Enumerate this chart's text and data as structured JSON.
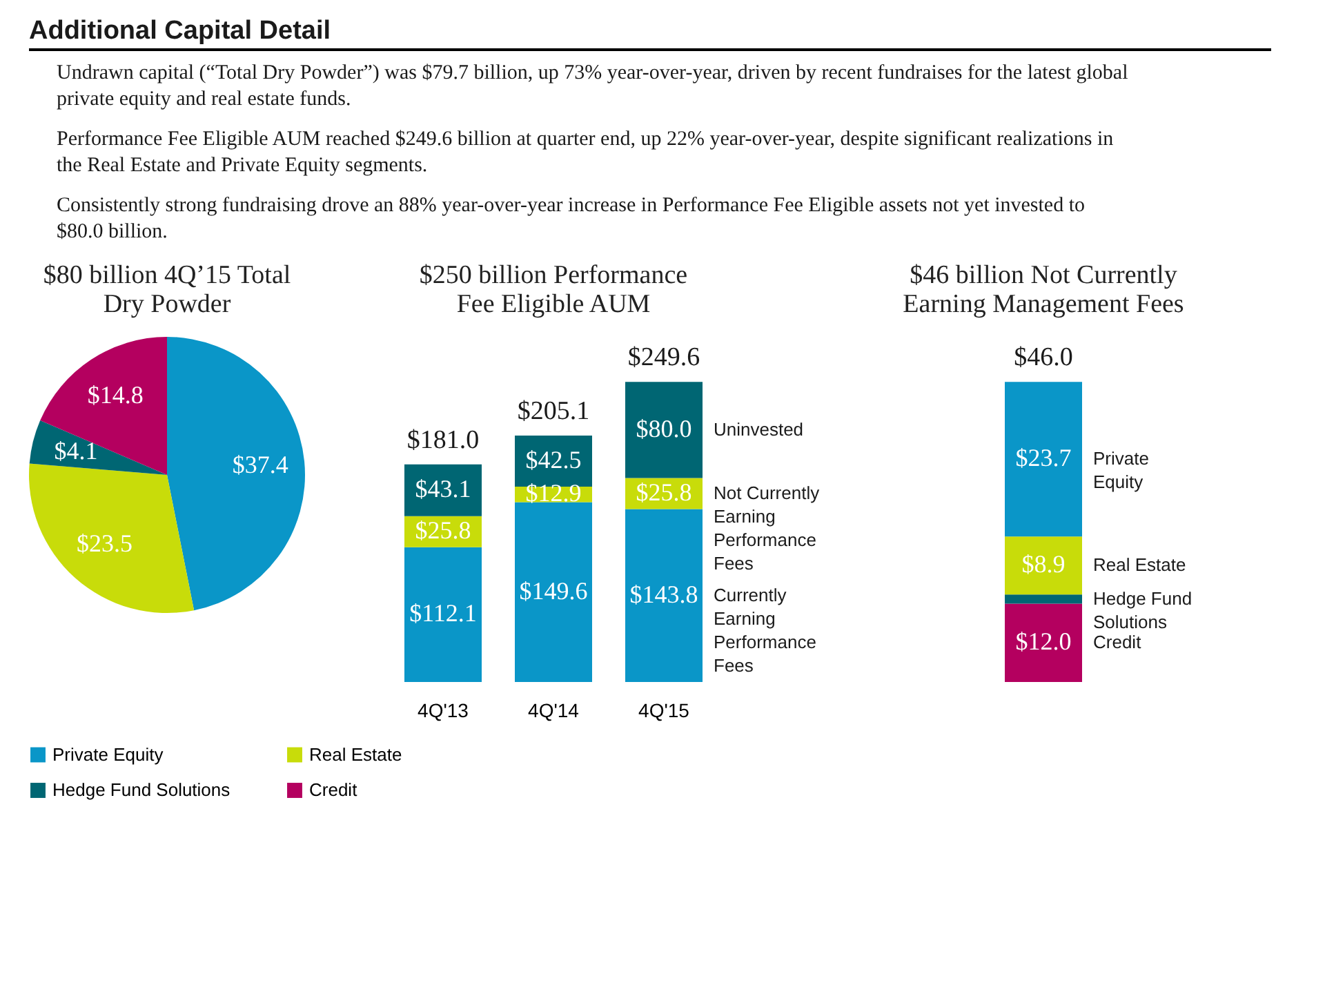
{
  "chart_data": [
    {
      "type": "other",
      "title": "Additional Capital Detail",
      "annotations": [
        "Undrawn capital (“Total Dry Powder”) was $79.7 billion, up 73% year-over-year, driven by recent fundraises for the latest global private equity and real estate funds.",
        "Performance Fee Eligible AUM reached $249.6 billion at quarter end, up 22% year-over-year, despite significant realizations in the Real Estate and Private Equity segments.",
        "Consistently strong fundraising drove an 88% year-over-year increase in Performance Fee Eligible assets not yet invested to $80.0 billion."
      ]
    },
    {
      "type": "pie",
      "title": "$80 billion 4Q’15 Total Dry Powder",
      "categories": [
        "Private Equity",
        "Real Estate",
        "Hedge Fund Solutions",
        "Credit"
      ],
      "values": [
        37.4,
        23.5,
        4.1,
        14.8
      ],
      "colors": [
        "#0a96c8",
        "#c8dc0a",
        "#006673",
        "#b4005f"
      ],
      "value_labels": [
        "$37.4",
        "$23.5",
        "$4.1",
        "$14.8"
      ],
      "legend": "bottom"
    },
    {
      "type": "bar",
      "stacked": true,
      "title": "$250 billion Performance Fee Eligible AUM",
      "categories": [
        "4Q'13",
        "4Q'14",
        "4Q'15"
      ],
      "legend": "right",
      "totals": [
        "$181.0",
        "$205.1",
        "$249.6"
      ],
      "series": [
        {
          "name": "Currently Earning Performance Fees",
          "color": "#0a96c8",
          "values": [
            112.1,
            149.6,
            143.8
          ],
          "value_labels": [
            "$112.1",
            "$149.6",
            "$143.8"
          ]
        },
        {
          "name": "Not Currently Earning Performance Fees",
          "color": "#c8dc0a",
          "values": [
            25.8,
            12.9,
            25.8
          ],
          "value_labels": [
            "$25.8",
            "$12.9",
            "$25.8"
          ]
        },
        {
          "name": "Uninvested",
          "color": "#006673",
          "values": [
            43.1,
            42.5,
            80.0
          ],
          "value_labels": [
            "$43.1",
            "$42.5",
            "$80.0"
          ]
        }
      ]
    },
    {
      "type": "bar",
      "stacked": true,
      "title": "$46 billion Not Currently Earning Management Fees",
      "categories": [
        null
      ],
      "legend": "right",
      "totals": [
        "$46.0"
      ],
      "series": [
        {
          "name": "Credit",
          "color": "#b4005f",
          "values": [
            12.0
          ],
          "value_labels": [
            "$12.0"
          ]
        },
        {
          "name": "Hedge Fund Solutions",
          "color": "#006673",
          "values": [
            1.4
          ],
          "value_labels": [
            null
          ]
        },
        {
          "name": "Real Estate",
          "color": "#c8dc0a",
          "values": [
            8.9
          ],
          "value_labels": [
            "$8.9"
          ]
        },
        {
          "name": "Private Equity",
          "color": "#0a96c8",
          "values": [
            23.7
          ],
          "value_labels": [
            "$23.7"
          ]
        }
      ]
    }
  ]
}
